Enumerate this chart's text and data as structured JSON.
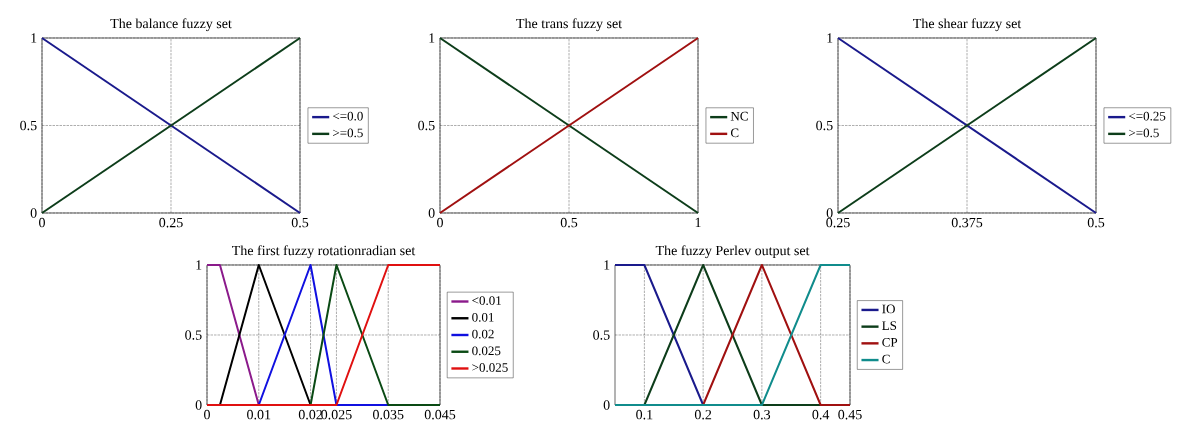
{
  "chart_data": [
    {
      "type": "line",
      "title": "The balance fuzzy set",
      "xlim": [
        0,
        0.5
      ],
      "ylim": [
        0,
        1
      ],
      "xticks": [
        0,
        0.25,
        0.5
      ],
      "yticks": [
        0,
        0.5,
        1
      ],
      "grid": true,
      "legend": "right",
      "series": [
        {
          "name": "<=0.0",
          "color": "#1a1a8c",
          "x": [
            0,
            0.5
          ],
          "values": [
            1,
            0
          ]
        },
        {
          "name": ">=0.5",
          "color": "#0d3d1a",
          "x": [
            0,
            0.5
          ],
          "values": [
            0,
            1
          ]
        }
      ]
    },
    {
      "type": "line",
      "title": "The trans fuzzy set",
      "xlim": [
        0,
        1
      ],
      "ylim": [
        0,
        1
      ],
      "xticks": [
        0,
        0.5,
        1
      ],
      "yticks": [
        0,
        0.5,
        1
      ],
      "grid": true,
      "legend": "right",
      "series": [
        {
          "name": "NC",
          "color": "#0d3d1a",
          "x": [
            0,
            1
          ],
          "values": [
            1,
            0
          ]
        },
        {
          "name": "C",
          "color": "#a01010",
          "x": [
            0,
            1
          ],
          "values": [
            0,
            1
          ]
        }
      ]
    },
    {
      "type": "line",
      "title": "The shear fuzzy set",
      "xlim": [
        0.25,
        0.5
      ],
      "ylim": [
        0,
        1
      ],
      "xticks": [
        0.25,
        0.375,
        0.5
      ],
      "yticks": [
        0,
        0.5,
        1
      ],
      "grid": true,
      "legend": "right",
      "series": [
        {
          "name": "<=0.25",
          "color": "#1a1a8c",
          "x": [
            0.25,
            0.5
          ],
          "values": [
            1,
            0
          ]
        },
        {
          "name": ">=0.5",
          "color": "#0d3d1a",
          "x": [
            0.25,
            0.5
          ],
          "values": [
            0,
            1
          ]
        }
      ]
    },
    {
      "type": "line",
      "title": "The first fuzzy rotationradian set",
      "xlim": [
        0,
        0.045
      ],
      "ylim": [
        0,
        1
      ],
      "xticks": [
        0,
        0.01,
        0.02,
        0.025,
        0.035,
        0.045
      ],
      "yticks": [
        0,
        0.5,
        1
      ],
      "grid": true,
      "legend": "right",
      "series": [
        {
          "name": "<0.01",
          "color": "#8b1a8b",
          "x": [
            0,
            0.0025,
            0.01
          ],
          "values": [
            1,
            1,
            0
          ]
        },
        {
          "name": "0.01",
          "color": "#000000",
          "x": [
            0,
            0.0025,
            0.01,
            0.02,
            0.045
          ],
          "values": [
            0,
            0,
            1,
            0,
            0
          ]
        },
        {
          "name": "0.02",
          "color": "#1010e0",
          "x": [
            0,
            0.01,
            0.02,
            0.025,
            0.045
          ],
          "values": [
            0,
            0,
            1,
            0,
            0
          ]
        },
        {
          "name": "0.025",
          "color": "#0a4a14",
          "x": [
            0,
            0.02,
            0.025,
            0.035,
            0.045
          ],
          "values": [
            0,
            0,
            1,
            0,
            0
          ]
        },
        {
          "name": ">0.025",
          "color": "#e01010",
          "x": [
            0,
            0.025,
            0.035,
            0.045
          ],
          "values": [
            0,
            0,
            1,
            1
          ]
        }
      ]
    },
    {
      "type": "line",
      "title": "The fuzzy Perlev output set",
      "xlim": [
        0.05,
        0.45
      ],
      "ylim": [
        0,
        1
      ],
      "xticks": [
        0.1,
        0.2,
        0.3,
        0.4,
        0.45
      ],
      "yticks": [
        0,
        0.5,
        1
      ],
      "grid": true,
      "legend": "right",
      "series": [
        {
          "name": "IO",
          "color": "#1a1a8c",
          "x": [
            0.05,
            0.1,
            0.2,
            0.45
          ],
          "values": [
            1,
            1,
            0,
            0
          ]
        },
        {
          "name": "LS",
          "color": "#0d3d1a",
          "x": [
            0.05,
            0.1,
            0.2,
            0.3,
            0.45
          ],
          "values": [
            0,
            0,
            1,
            0,
            0
          ]
        },
        {
          "name": "CP",
          "color": "#a01010",
          "x": [
            0.05,
            0.2,
            0.3,
            0.4,
            0.45
          ],
          "values": [
            0,
            0,
            1,
            0,
            0
          ]
        },
        {
          "name": "C",
          "color": "#108c8c",
          "x": [
            0.05,
            0.3,
            0.4,
            0.45
          ],
          "values": [
            0,
            0,
            1,
            1
          ]
        }
      ]
    }
  ]
}
